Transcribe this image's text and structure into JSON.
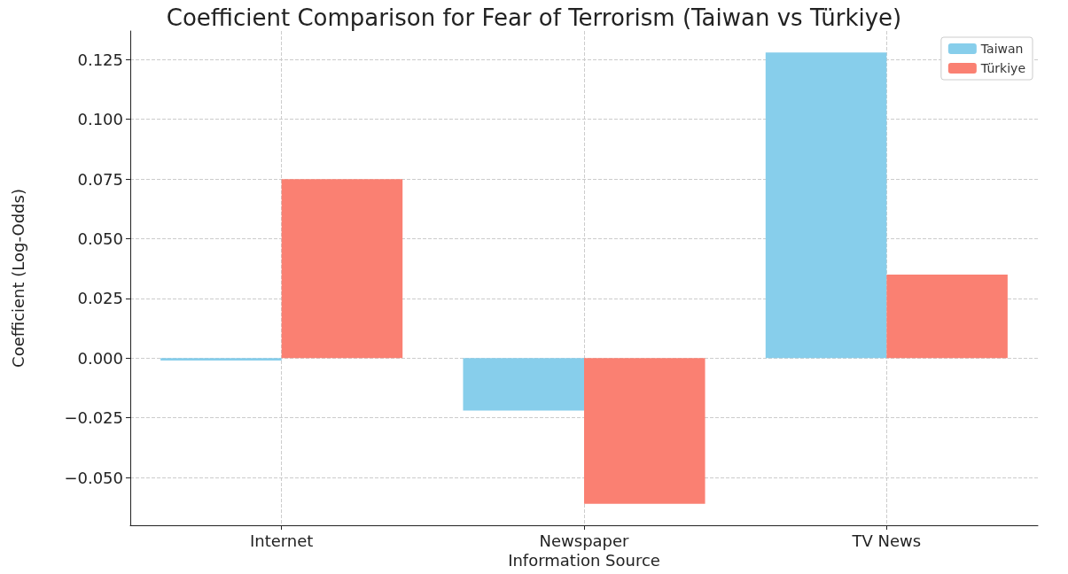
{
  "chart_data": {
    "type": "bar",
    "title": "Coefficient Comparison for Fear of Terrorism (Taiwan vs Türkiye)",
    "xlabel": "Information Source",
    "ylabel": "Coefficient (Log-Odds)",
    "categories": [
      "Internet",
      "Newspaper",
      "TV News"
    ],
    "series": [
      {
        "name": "Taiwan",
        "color": "#87ceeb",
        "values": [
          -0.001,
          -0.022,
          0.128
        ]
      },
      {
        "name": "Türkiye",
        "color": "#fa8072",
        "values": [
          0.075,
          -0.061,
          0.035
        ]
      }
    ],
    "ylim": [
      -0.07,
      0.137
    ],
    "yticks": [
      {
        "value": -0.05,
        "label": "−0.050"
      },
      {
        "value": -0.025,
        "label": "−0.025"
      },
      {
        "value": 0,
        "label": "0.000"
      },
      {
        "value": 0.025,
        "label": "0.025"
      },
      {
        "value": 0.05,
        "label": "0.050"
      },
      {
        "value": 0.075,
        "label": "0.075"
      },
      {
        "value": 0.1,
        "label": "0.100"
      },
      {
        "value": 0.125,
        "label": "0.125"
      }
    ],
    "grid": true,
    "legend": "top right"
  }
}
